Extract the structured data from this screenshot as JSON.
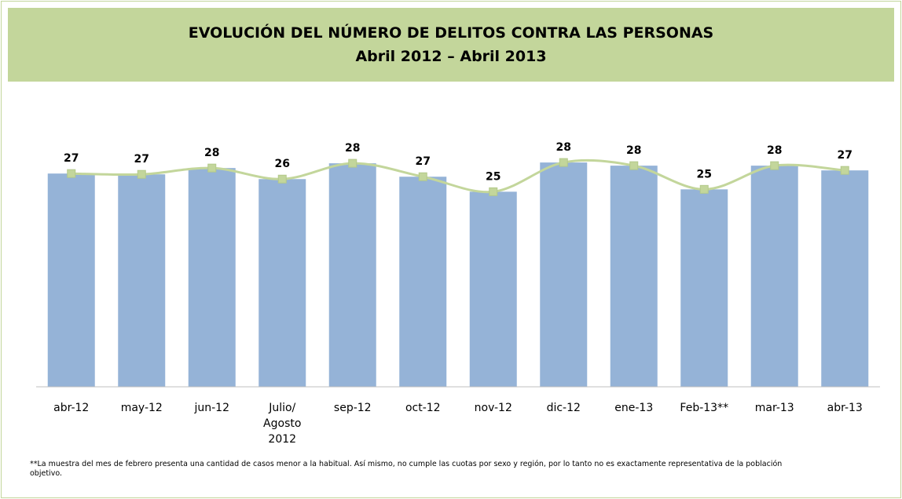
{
  "chart_data": {
    "type": "combo",
    "title": "EVOLUCIÓN DEL NÚMERO DE DELITOS CONTRA LAS PERSONAS",
    "subtitle": "Abril 2012 – Abril 2013",
    "categories": [
      "abr-12",
      "may-12",
      "jun-12",
      "Julio/\nAgosto\n2012",
      "sep-12",
      "oct-12",
      "nov-12",
      "dic-12",
      "ene-13",
      "Feb-13**",
      "mar-13",
      "abr-13"
    ],
    "values": [
      27.0,
      26.9,
      27.7,
      26.3,
      28.3,
      26.6,
      24.7,
      28.4,
      28.0,
      25.0,
      28.0,
      27.4
    ],
    "value_labels": [
      "27",
      "27",
      "28",
      "26",
      "28",
      "27",
      "25",
      "28",
      "28",
      "25",
      "28",
      "27"
    ],
    "bar_color": "#95b3d7",
    "line_color": "#c3d69b",
    "ylim": [
      0,
      30
    ],
    "smooth": true,
    "footnote": "**La muestra del mes de febrero presenta una cantidad de casos menor a la habitual. Así mismo, no cumple las cuotas por sexo y región, por lo tanto no es exactamente representativa de la población objetivo."
  }
}
